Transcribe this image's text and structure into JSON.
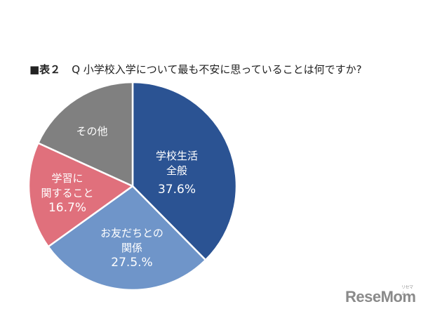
{
  "title": {
    "tag": "■表２",
    "question": "Q 小学校入学について最も不安に思っていることは何ですか?"
  },
  "chart_data": {
    "type": "pie",
    "title": "■表２ Q 小学校入学について最も不安に思っていることは何ですか?",
    "start_angle": "12 o'clock, clockwise",
    "slices": [
      {
        "label": "学校生活全般",
        "value": 37.6,
        "color": "#2b5393",
        "display_lines": [
          "学校生活",
          "全般"
        ],
        "display_value": "37.6%"
      },
      {
        "label": "お友だちとの関係",
        "value": 27.5,
        "color": "#6f95c9",
        "display_lines": [
          "お友だちとの",
          "関係"
        ],
        "display_value": "27.5.%"
      },
      {
        "label": "学習に関すること",
        "value": 16.7,
        "color": "#e0707c",
        "display_lines": [
          "学習に",
          "関すること"
        ],
        "display_value": "16.7%"
      },
      {
        "label": "その他",
        "value": 18.2,
        "color": "#808080",
        "display_lines": [
          "その他"
        ],
        "display_value": ""
      }
    ]
  },
  "labels": {
    "school_life_line1": "学校生活",
    "school_life_line2": "全般",
    "school_life_pct": "37.6%",
    "friends_line1": "お友だちとの",
    "friends_line2": "関係",
    "friends_pct": "27.5.%",
    "study_line1": "学習に",
    "study_line2": "関すること",
    "study_pct": "16.7%",
    "other_line1": "その他"
  },
  "logo": {
    "text": "ReseMom",
    "sub": "リセマム"
  }
}
